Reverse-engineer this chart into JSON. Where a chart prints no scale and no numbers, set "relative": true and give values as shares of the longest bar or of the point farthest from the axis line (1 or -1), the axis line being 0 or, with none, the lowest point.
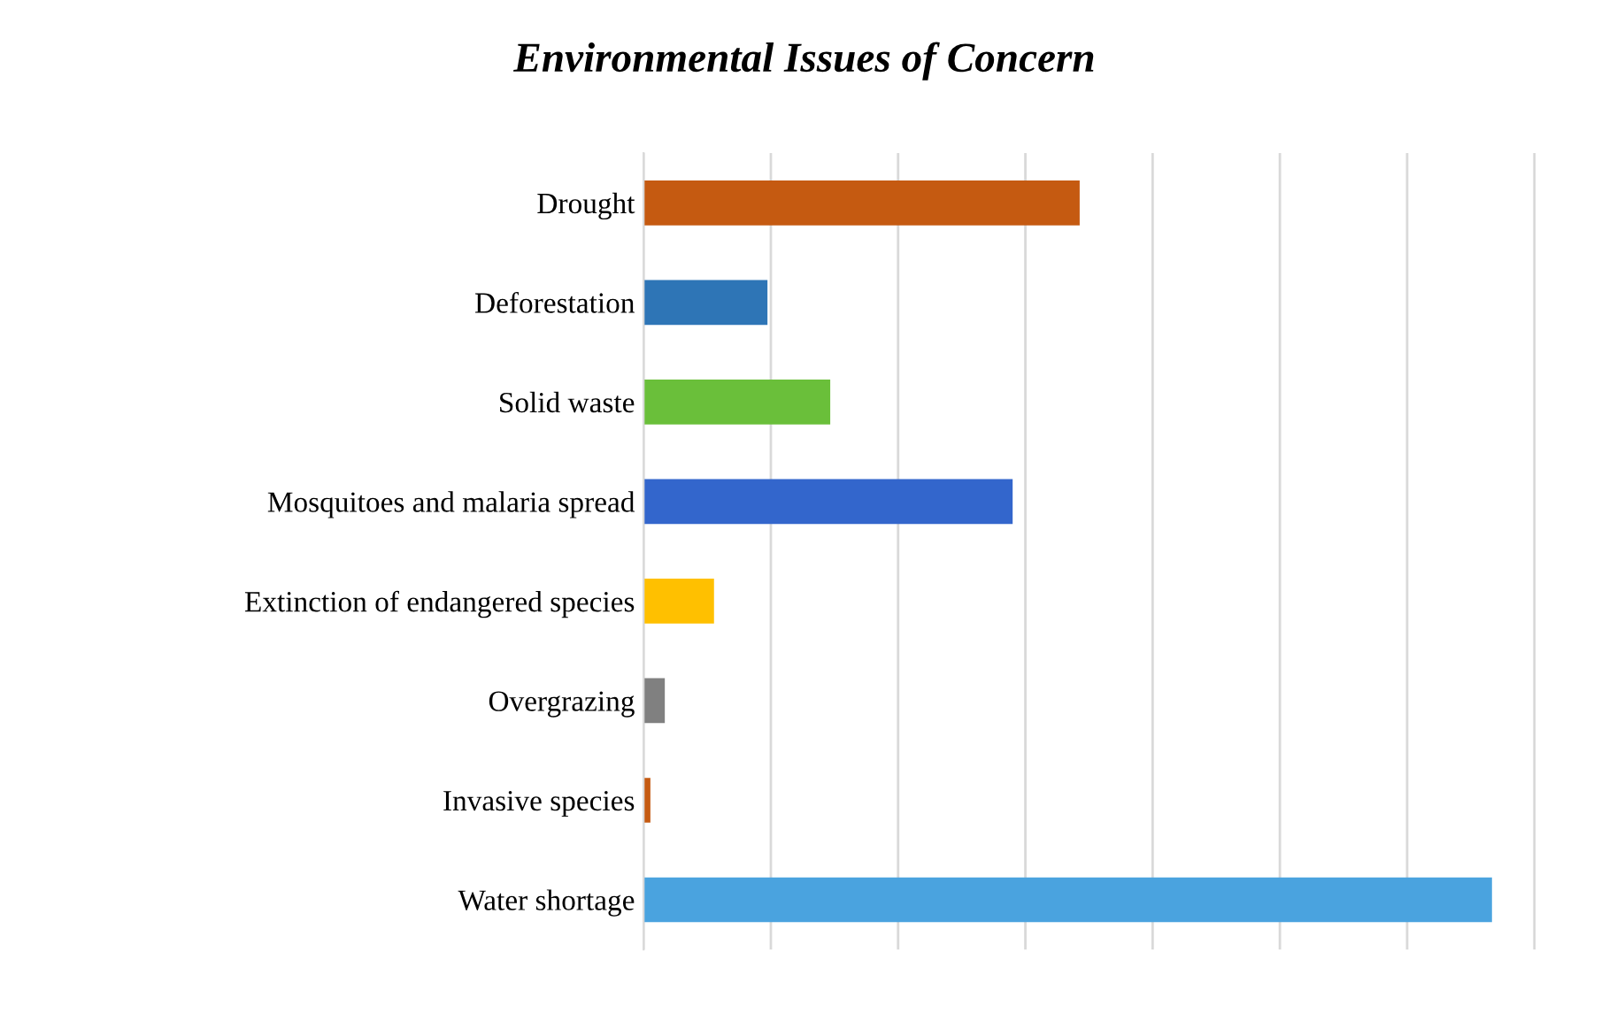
{
  "chart_data": {
    "type": "bar",
    "orientation": "horizontal",
    "relative": true,
    "title": "Environmental Issues of Concern",
    "categories": [
      "Drought",
      "Deforestation",
      "Solid waste",
      "Mosquitoes and malaria spread",
      "Extinction of endangered species",
      "Overgrazing",
      "Invasive species",
      "Water shortage"
    ],
    "values": [
      0.514,
      0.146,
      0.22,
      0.435,
      0.083,
      0.025,
      0.008,
      1
    ],
    "colors": [
      "#c55a11",
      "#2e75b6",
      "#6abf3a",
      "#3366cc",
      "#ffc000",
      "#808080",
      "#c55a11",
      "#4aa3df"
    ],
    "grid": "x",
    "legend": false
  }
}
